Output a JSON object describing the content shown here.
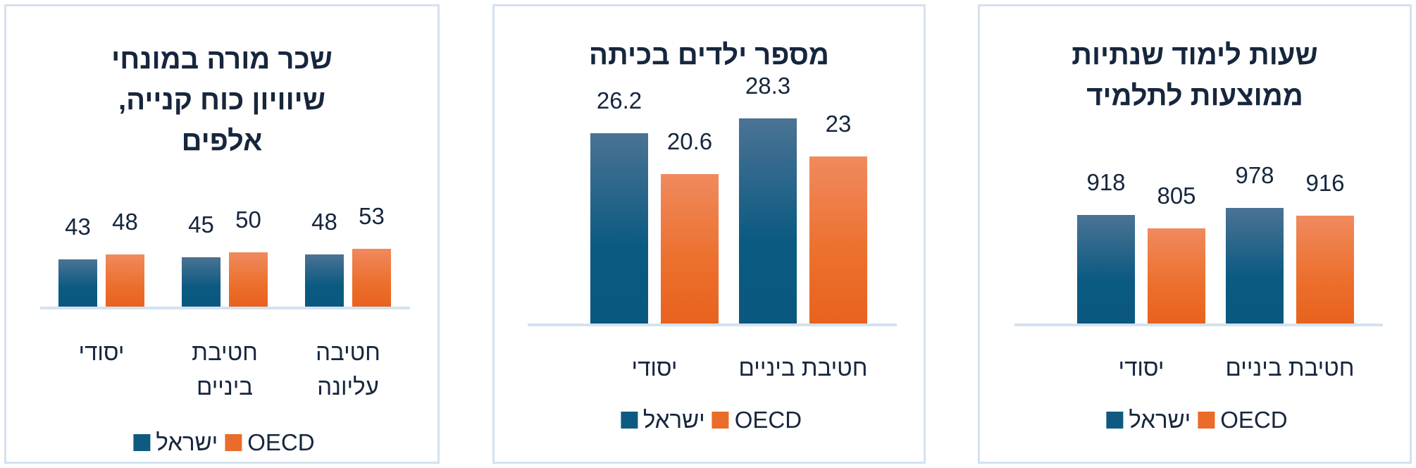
{
  "colors": {
    "israel": "#0e5a80",
    "oecd": "#ea6b2a",
    "border": "#d3e2f0",
    "text": "#16263d"
  },
  "chart_data": [
    {
      "type": "bar",
      "title": "שכר מורה במונחי שיוויון כוח קנייה, אלפים",
      "categories": [
        "יסודי",
        "חטיבת ביניים",
        "חטיבה עליונה"
      ],
      "series": [
        {
          "name": "ישראל",
          "values": [
            43,
            45,
            48
          ]
        },
        {
          "name": "OECD",
          "values": [
            48,
            50,
            53
          ]
        }
      ],
      "legend": "bottom",
      "grid": false
    },
    {
      "type": "bar",
      "title": "מספר ילדים בכיתה",
      "categories": [
        "יסודי",
        "חטיבת ביניים"
      ],
      "series": [
        {
          "name": "ישראל",
          "values": [
            26.2,
            28.3
          ]
        },
        {
          "name": "OECD",
          "values": [
            20.6,
            23
          ]
        }
      ],
      "legend": "bottom",
      "grid": false
    },
    {
      "type": "bar",
      "title": "שעות לימוד שנתיות ממוצעות לתלמיד",
      "categories": [
        "יסודי",
        "חטיבת ביניים"
      ],
      "series": [
        {
          "name": "ישראל",
          "values": [
            918,
            978
          ]
        },
        {
          "name": "OECD",
          "values": [
            805,
            916
          ]
        }
      ],
      "legend": "bottom",
      "grid": false
    }
  ]
}
